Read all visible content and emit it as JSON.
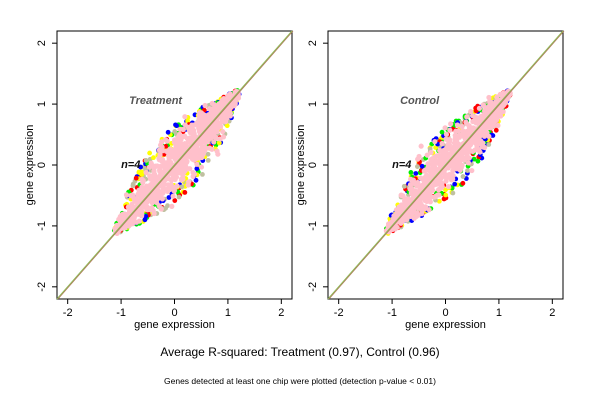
{
  "chart_data": [
    {
      "type": "scatter",
      "panel": "treatment",
      "annotation": "Treatment",
      "n_label": "n=4",
      "xlabel": "gene expression",
      "ylabel": "gene expression",
      "xlim": [
        -2.2,
        2.2
      ],
      "ylim": [
        -2.2,
        2.2
      ],
      "xticks": [
        "-2",
        "-1",
        "0",
        "1",
        "2"
      ],
      "yticks": [
        "-2",
        "-1",
        "0",
        "1",
        "2"
      ],
      "reference_line": {
        "from": [
          -2.2,
          -2.2
        ],
        "to": [
          2.2,
          2.2
        ]
      },
      "point_colors": [
        "#00ee00",
        "#ff0000",
        "#0000ff",
        "#ffff00",
        "#c0c0a0",
        "#ffc0cb"
      ],
      "cloud": {
        "x_range": [
          -1.1,
          1.2
        ],
        "spread": 0.55,
        "dominant_color": "#ffc0cb"
      }
    },
    {
      "type": "scatter",
      "panel": "control",
      "annotation": "Control",
      "n_label": "n=4",
      "xlabel": "gene expression",
      "ylabel": "gene expression",
      "xlim": [
        -2.2,
        2.2
      ],
      "ylim": [
        -2.2,
        2.2
      ],
      "xticks": [
        "-2",
        "-1",
        "0",
        "1",
        "2"
      ],
      "yticks": [
        "-2",
        "-1",
        "0",
        "1",
        "2"
      ],
      "reference_line": {
        "from": [
          -2.2,
          -2.2
        ],
        "to": [
          2.2,
          2.2
        ]
      },
      "point_colors": [
        "#00ee00",
        "#ff0000",
        "#0000ff",
        "#ffff00",
        "#c0c0a0",
        "#ffc0cb"
      ],
      "cloud": {
        "x_range": [
          -1.1,
          1.2
        ],
        "spread": 0.5,
        "dominant_color": "#ffc0cb"
      }
    }
  ],
  "caption": "Average R-squared: Treatment (0.97), Control (0.96)",
  "footnote": "Genes detected at least one chip were plotted (detection p-value < 0.01)"
}
